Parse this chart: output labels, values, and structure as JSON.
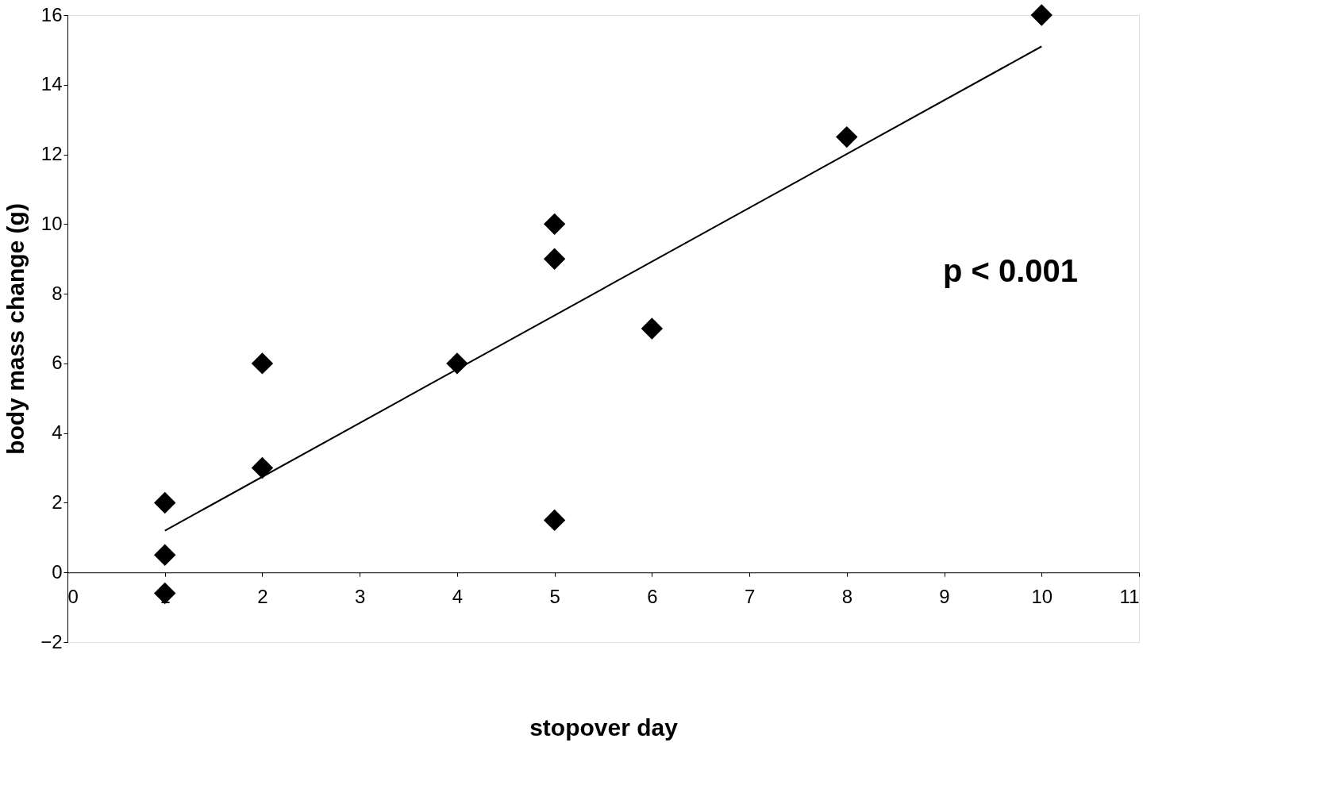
{
  "chart_data": {
    "type": "scatter",
    "xlabel": "stopover day",
    "ylabel": "body mass change (g)",
    "xlim": [
      0,
      11
    ],
    "ylim": [
      -2,
      16
    ],
    "xticks": [
      0,
      1,
      2,
      3,
      4,
      5,
      6,
      7,
      8,
      9,
      10,
      11
    ],
    "yticks": [
      -2,
      0,
      2,
      4,
      6,
      8,
      10,
      12,
      14,
      16
    ],
    "grid": false,
    "marker": "diamond",
    "annotations": [
      "p < 0.001"
    ],
    "series": [
      {
        "color": "#000000",
        "x": [
          1,
          1,
          1,
          2,
          2,
          4,
          5,
          5,
          5,
          6,
          8,
          10
        ],
        "values": [
          2,
          0.5,
          -0.6,
          6,
          3,
          6,
          10,
          9,
          1.5,
          7,
          12.5,
          16
        ]
      },
      {
        "type": "line",
        "color": "#000000",
        "marker": "none",
        "line_style": "solid",
        "x": [
          1,
          10
        ],
        "values": [
          1.2,
          15.1
        ]
      }
    ]
  }
}
